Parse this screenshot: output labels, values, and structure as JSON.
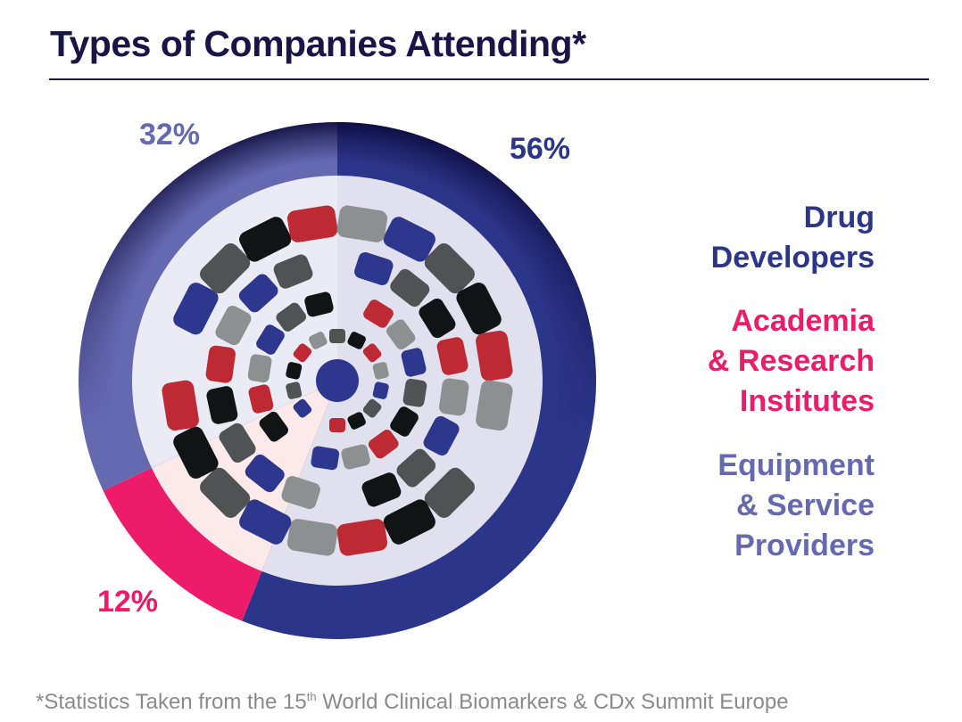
{
  "title": "Types of Companies Attending*",
  "chart_data": {
    "type": "pie",
    "title": "Types of Companies Attending*",
    "slices": [
      {
        "label": "Drug Developers",
        "legend_lines": [
          "Drug",
          "Developers"
        ],
        "value": 56,
        "value_label": "56%",
        "color": "#2b3589",
        "inner_color": "#e1e0ee"
      },
      {
        "label": "Academia & Research Institutes",
        "legend_lines": [
          "Academia",
          "& Research",
          "Institutes"
        ],
        "value": 12,
        "value_label": "12%",
        "color": "#ec1c6a",
        "inner_color": "#fce9ea"
      },
      {
        "label": "Equipment & Service Providers",
        "legend_lines": [
          "Equipment",
          "& Service",
          "Providers"
        ],
        "value": 32,
        "value_label": "32%",
        "color": "#6569b0",
        "inner_color": "#ebebf5"
      }
    ],
    "start": "top",
    "direction": "clockwise",
    "legend_placement": "right"
  },
  "footnote": {
    "prefix": "*Statistics Taken from the 15",
    "sup": "th",
    "suffix": " World Clinical Biomarkers & CDx Summit Europe"
  }
}
